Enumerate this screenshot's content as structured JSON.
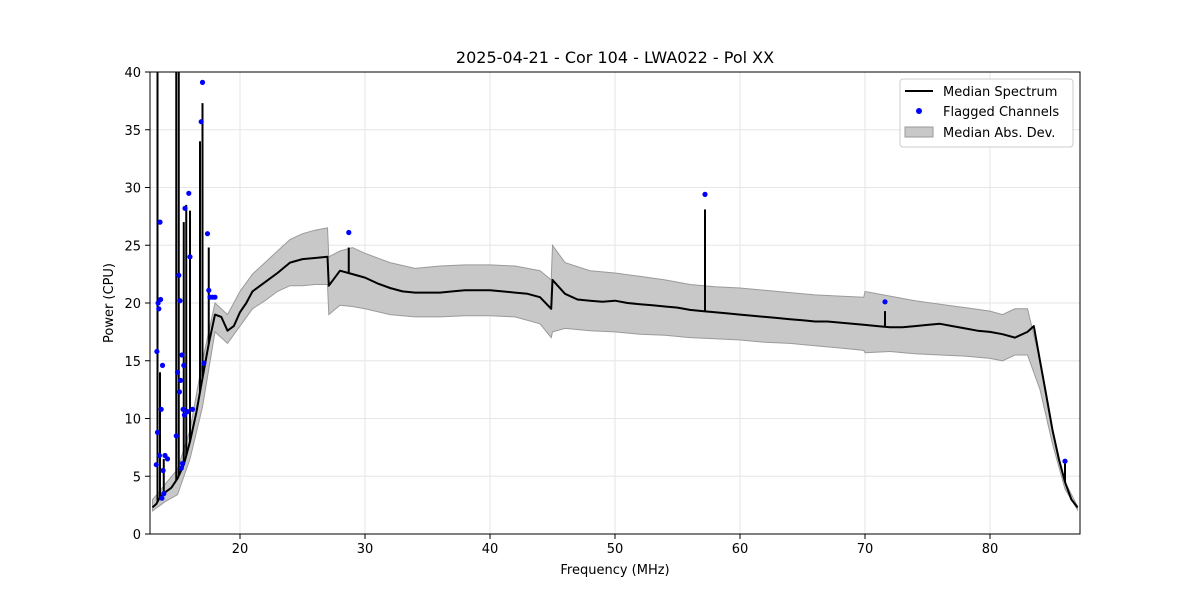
{
  "chart_data": {
    "type": "line",
    "title": "2025-04-21 - Cor 104 - LWA022 - Pol XX",
    "xlabel": "Frequency (MHz)",
    "ylabel": "Power (CPU)",
    "xlim": [
      12.8,
      87.2
    ],
    "ylim": [
      0,
      40
    ],
    "xticks": [
      20,
      30,
      40,
      50,
      60,
      70,
      80
    ],
    "yticks": [
      0,
      5,
      10,
      15,
      20,
      25,
      30,
      35,
      40
    ],
    "grid": true,
    "legend_position": "top-right",
    "legend": [
      {
        "label": "Median Spectrum",
        "kind": "line",
        "color": "#000000"
      },
      {
        "label": "Flagged Channels",
        "kind": "marker",
        "color": "#0000ff"
      },
      {
        "label": "Median Abs. Dev.",
        "kind": "patch",
        "color": "#c8c8c8"
      }
    ],
    "series": [
      {
        "name": "Median Spectrum",
        "color": "#000000",
        "x": [
          13.0,
          13.3,
          13.5,
          13.7,
          14.0,
          14.5,
          15.0,
          15.5,
          16.0,
          16.5,
          17.0,
          17.5,
          18.0,
          18.5,
          19.0,
          19.5,
          20.0,
          20.5,
          21.0,
          22.0,
          23.0,
          24.0,
          25.0,
          26.0,
          27.0,
          27.1,
          28.0,
          29.0,
          30.0,
          31.0,
          32.0,
          33.0,
          34.0,
          35.0,
          36.0,
          37.0,
          38.0,
          39.0,
          40.0,
          41.0,
          42.0,
          43.0,
          44.0,
          44.9,
          45.0,
          46.0,
          47.0,
          48.0,
          49.0,
          50.0,
          51.0,
          52.0,
          53.0,
          54.0,
          55.0,
          56.0,
          57.0,
          58.0,
          59.0,
          60.0,
          61.0,
          62.0,
          63.0,
          64.0,
          65.0,
          66.0,
          67.0,
          68.0,
          69.0,
          70.0,
          71.0,
          72.0,
          73.0,
          74.0,
          75.0,
          76.0,
          77.0,
          78.0,
          79.0,
          80.0,
          81.0,
          82.0,
          83.0,
          83.5,
          84.0,
          84.5,
          85.0,
          85.5,
          86.0,
          86.5,
          87.0
        ],
        "y": [
          2.3,
          2.6,
          3.0,
          3.3,
          3.6,
          4.0,
          4.8,
          6.0,
          8.0,
          10.5,
          13.5,
          16.5,
          19.0,
          18.8,
          17.6,
          18.0,
          19.2,
          20.0,
          21.0,
          21.8,
          22.6,
          23.5,
          23.8,
          23.9,
          24.0,
          21.5,
          22.8,
          22.5,
          22.2,
          21.7,
          21.3,
          21.0,
          20.9,
          20.9,
          20.9,
          21.0,
          21.1,
          21.1,
          21.1,
          21.0,
          20.9,
          20.8,
          20.5,
          19.5,
          22.0,
          20.8,
          20.3,
          20.2,
          20.1,
          20.2,
          20.0,
          19.9,
          19.8,
          19.7,
          19.6,
          19.4,
          19.3,
          19.2,
          19.1,
          19.0,
          18.9,
          18.8,
          18.7,
          18.6,
          18.5,
          18.4,
          18.4,
          18.3,
          18.2,
          18.1,
          18.0,
          17.9,
          17.9,
          18.0,
          18.1,
          18.2,
          18.0,
          17.8,
          17.6,
          17.5,
          17.3,
          17.0,
          17.5,
          18.0,
          15.0,
          12.0,
          9.0,
          6.5,
          4.5,
          3.0,
          2.3
        ]
      }
    ],
    "spikes": [
      {
        "x": 13.4,
        "y": 40.0
      },
      {
        "x": 13.6,
        "y": 14.0
      },
      {
        "x": 13.9,
        "y": 6.5
      },
      {
        "x": 14.9,
        "y": 40.0
      },
      {
        "x": 15.1,
        "y": 40.0
      },
      {
        "x": 15.5,
        "y": 27.0
      },
      {
        "x": 15.7,
        "y": 28.5
      },
      {
        "x": 16.0,
        "y": 28.0
      },
      {
        "x": 16.8,
        "y": 34.0
      },
      {
        "x": 17.0,
        "y": 37.3
      },
      {
        "x": 17.5,
        "y": 24.8
      },
      {
        "x": 28.7,
        "y": 24.8
      },
      {
        "x": 57.2,
        "y": 28.1
      },
      {
        "x": 71.6,
        "y": 19.3
      },
      {
        "x": 86.0,
        "y": 6.1
      }
    ],
    "mad_band": {
      "color": "#c8c8c8",
      "x": [
        13.0,
        13.5,
        14.0,
        15.0,
        16.0,
        17.0,
        18.0,
        19.0,
        20.0,
        21.0,
        22.0,
        23.0,
        24.0,
        25.0,
        26.0,
        27.0,
        27.1,
        28.0,
        29.0,
        30.0,
        32.0,
        34.0,
        36.0,
        38.0,
        40.0,
        42.0,
        44.0,
        44.9,
        45.0,
        46.0,
        48.0,
        50.0,
        52.0,
        54.0,
        56.0,
        58.0,
        60.0,
        62.0,
        64.0,
        66.0,
        68.0,
        69.9,
        70.0,
        72.0,
        74.0,
        76.0,
        78.0,
        80.0,
        81.0,
        82.0,
        83.0,
        84.0,
        85.0,
        86.0,
        87.0
      ],
      "upper": [
        3.0,
        3.6,
        4.3,
        5.6,
        9.0,
        15.0,
        20.0,
        19.0,
        21.0,
        22.5,
        23.5,
        24.5,
        25.5,
        26.0,
        26.3,
        26.5,
        24.0,
        24.5,
        24.8,
        24.3,
        23.5,
        23.0,
        23.2,
        23.3,
        23.3,
        23.2,
        22.8,
        22.0,
        25.0,
        23.5,
        22.8,
        22.6,
        22.3,
        22.0,
        21.6,
        21.4,
        21.3,
        21.1,
        20.9,
        20.7,
        20.6,
        20.5,
        21.0,
        20.6,
        20.2,
        19.9,
        19.6,
        19.3,
        19.0,
        19.5,
        19.5,
        15.0,
        9.0,
        4.5,
        2.4
      ],
      "lower": [
        2.0,
        2.4,
        2.8,
        3.4,
        6.5,
        11.0,
        17.5,
        16.5,
        18.0,
        19.5,
        20.2,
        21.0,
        21.5,
        21.5,
        21.6,
        21.6,
        19.0,
        19.8,
        19.7,
        19.5,
        19.0,
        18.8,
        18.8,
        18.9,
        18.9,
        18.8,
        18.2,
        17.0,
        17.5,
        17.8,
        17.6,
        17.5,
        17.3,
        17.2,
        17.0,
        16.9,
        16.8,
        16.6,
        16.5,
        16.3,
        16.1,
        15.9,
        15.7,
        15.8,
        15.6,
        15.5,
        15.4,
        15.2,
        15.0,
        15.5,
        15.5,
        12.5,
        7.8,
        3.9,
        2.1
      ]
    },
    "flagged_channels": {
      "color": "#0000ff",
      "x": [
        13.3,
        13.35,
        13.4,
        13.45,
        13.5,
        13.55,
        13.6,
        13.65,
        13.7,
        13.75,
        13.8,
        13.85,
        13.9,
        14.0,
        14.2,
        14.9,
        15.0,
        15.1,
        15.15,
        15.2,
        15.25,
        15.3,
        15.35,
        15.4,
        15.45,
        15.5,
        15.55,
        15.6,
        15.8,
        15.9,
        16.0,
        16.2,
        16.9,
        17.0,
        17.1,
        17.4,
        17.5,
        17.6,
        17.8,
        18.0,
        28.7,
        57.2,
        71.6,
        86.0
      ],
      "y": [
        6.0,
        15.8,
        8.8,
        20.0,
        19.5,
        6.8,
        27.0,
        20.3,
        10.8,
        3.1,
        14.6,
        5.5,
        3.5,
        6.8,
        6.5,
        8.5,
        14.0,
        22.4,
        12.3,
        20.2,
        13.3,
        5.7,
        15.5,
        6.1,
        10.8,
        14.6,
        10.3,
        28.2,
        10.6,
        29.5,
        24.0,
        10.8,
        35.7,
        39.1,
        14.8,
        26.0,
        21.1,
        20.5,
        20.5,
        20.5,
        26.1,
        29.4,
        20.1,
        6.3
      ]
    }
  }
}
